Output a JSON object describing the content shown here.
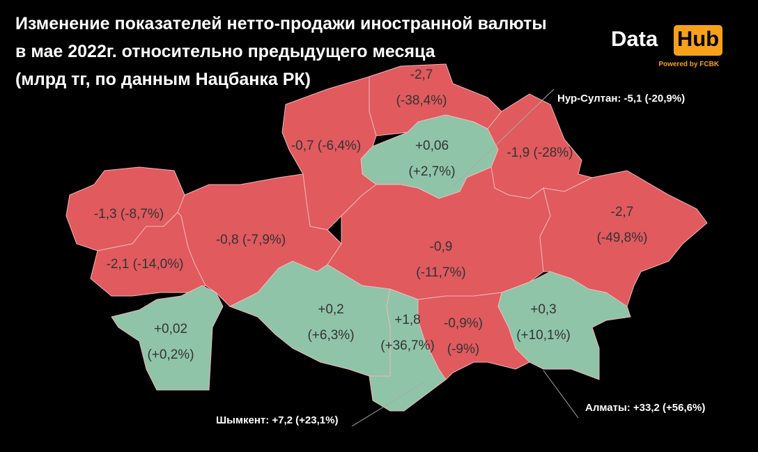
{
  "title_lines": [
    "Изменение показателей нетто-продажи иностранной валюты",
    "в мае 2022г. относительно предыдущего месяца",
    "(млрд тг, по данным Нацбанка РК)"
  ],
  "logo": {
    "left": "Data",
    "right": "Hub",
    "tagline": "Powered by FCBK"
  },
  "regions": [
    {
      "lines": [
        "-2,7",
        "(-38,4%)"
      ],
      "color": "#e05a5e"
    },
    {
      "lines": [
        "+0,06",
        "(+2,7%)"
      ],
      "color": "#8fc4a8"
    },
    {
      "lines": [
        "-0,7 (-6,4%)"
      ],
      "color": "#e05a5e"
    },
    {
      "lines": [
        "-1,9 (-28%)"
      ],
      "color": "#e05a5e"
    },
    {
      "lines": [
        "-1,3 (-8,7%)"
      ],
      "color": "#e05a5e"
    },
    {
      "lines": [
        "-2,1 (-14,0%)"
      ],
      "color": "#e05a5e"
    },
    {
      "lines": [
        "-0,8 (-7,9%)"
      ],
      "color": "#e05a5e"
    },
    {
      "lines": [
        "-0,9",
        "(-11,7%)"
      ],
      "color": "#e05a5e"
    },
    {
      "lines": [
        "-2,7",
        "(-49,8%)"
      ],
      "color": "#e05a5e"
    },
    {
      "lines": [
        "+0,02",
        "(+0,2%)"
      ],
      "color": "#8fc4a8"
    },
    {
      "lines": [
        "+0,2",
        "(+6,3%)"
      ],
      "color": "#8fc4a8"
    },
    {
      "lines": [
        "+1,8",
        "(+36,7%)"
      ],
      "color": "#8fc4a8"
    },
    {
      "lines": [
        "-0,9%)",
        "(-9%)"
      ],
      "color": "#e05a5e"
    },
    {
      "lines": [
        "+0,3",
        "(+10,1%)"
      ],
      "color": "#8fc4a8"
    }
  ],
  "cities": [
    "Нур-Султан: -5,1 (-20,9%)",
    "Шымкент: +7,2 (+23,1%)",
    "Алматы: +33,2 (+56,6%)"
  ]
}
